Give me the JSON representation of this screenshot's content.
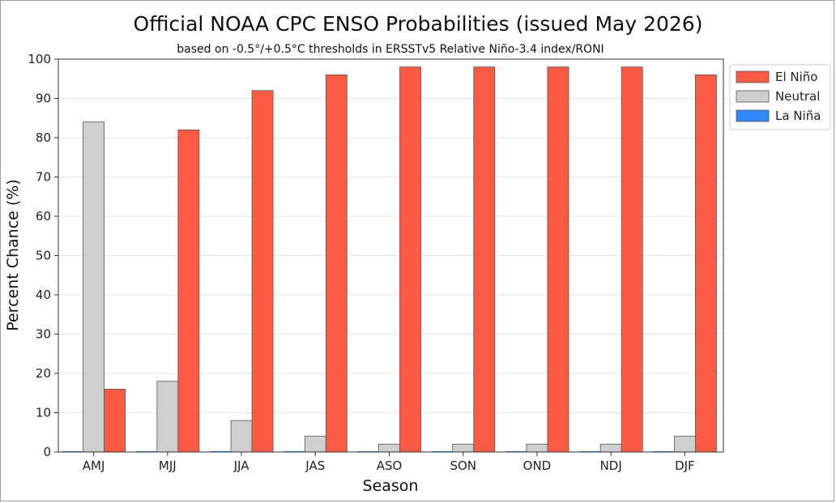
{
  "chart_data": {
    "type": "bar",
    "title": "Official NOAA CPC ENSO Probabilities (issued May 2026)",
    "subtitle": "based on -0.5°/+0.5°C thresholds in ERSSTv5 Relative Niño-3.4 index/RONI",
    "xlabel": "Season",
    "ylabel": "Percent Chance (%)",
    "ylim": [
      0,
      100
    ],
    "yticks": [
      0,
      10,
      20,
      30,
      40,
      50,
      60,
      70,
      80,
      90,
      100
    ],
    "grid": true,
    "legend_position": "upper-right-outside",
    "categories": [
      "AMJ",
      "MJJ",
      "JJA",
      "JAS",
      "ASO",
      "SON",
      "OND",
      "NDJ",
      "DJF"
    ],
    "series": [
      {
        "name": "La Niña",
        "color": "#3388ff",
        "values": [
          0,
          0,
          0,
          0,
          0,
          0,
          0,
          0,
          0
        ]
      },
      {
        "name": "Neutral",
        "color": "#cfcfcf",
        "values": [
          84,
          18,
          8,
          4,
          2,
          2,
          2,
          2,
          4
        ]
      },
      {
        "name": "El Niño",
        "color": "#ff5a44",
        "values": [
          16,
          82,
          92,
          96,
          98,
          98,
          98,
          98,
          96
        ]
      }
    ],
    "legend_order": [
      "El Niño",
      "Neutral",
      "La Niña"
    ]
  }
}
